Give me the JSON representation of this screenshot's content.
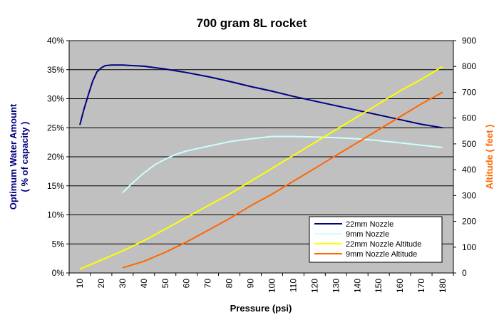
{
  "chart_data": {
    "type": "line",
    "title": "700 gram 8L rocket",
    "xlabel": "Pressure (psi)",
    "ylabel_left_line1": "Optimum Water Amount",
    "ylabel_left_line2": "( % of capacity )",
    "ylabel_right": "Altitude ( feet )",
    "x_ticks": [
      "10",
      "20",
      "30",
      "40",
      "50",
      "60",
      "70",
      "80",
      "90",
      "100",
      "110",
      "120",
      "130",
      "140",
      "150",
      "160",
      "170",
      "180"
    ],
    "xlim": [
      5,
      185
    ],
    "y_left_ticks": [
      "0%",
      "5%",
      "10%",
      "15%",
      "20%",
      "25%",
      "30%",
      "35%",
      "40%"
    ],
    "y_left_range": [
      0,
      40
    ],
    "y_right_ticks": [
      "0",
      "100",
      "200",
      "300",
      "400",
      "500",
      "600",
      "700",
      "800",
      "900"
    ],
    "y_right_range": [
      0,
      900
    ],
    "grid": "horizontal",
    "legend_position": "bottom-right",
    "plot_background": "#c0c0c0",
    "series": [
      {
        "name": "22mm Nozzle",
        "axis": "left",
        "color": "#000080",
        "x": [
          10,
          12,
          14,
          16,
          18,
          20,
          22,
          25,
          30,
          40,
          50,
          60,
          70,
          80,
          90,
          100,
          110,
          120,
          130,
          140,
          150,
          160,
          170,
          180
        ],
        "y": [
          25.5,
          28.3,
          30.7,
          33.0,
          34.6,
          35.3,
          35.7,
          35.8,
          35.8,
          35.6,
          35.1,
          34.5,
          33.8,
          33.0,
          32.1,
          31.3,
          30.4,
          29.6,
          28.8,
          28.0,
          27.2,
          26.4,
          25.6,
          25.0
        ]
      },
      {
        "name": "9mm Nozzle",
        "axis": "left",
        "color": "#ccffff",
        "x": [
          30,
          35,
          40,
          45,
          50,
          55,
          60,
          70,
          80,
          90,
          100,
          110,
          120,
          130,
          140,
          150,
          160,
          170,
          180
        ],
        "y": [
          13.8,
          15.6,
          17.2,
          18.6,
          19.6,
          20.4,
          21.0,
          21.8,
          22.6,
          23.1,
          23.5,
          23.5,
          23.4,
          23.3,
          23.1,
          22.8,
          22.4,
          22.0,
          21.6
        ]
      },
      {
        "name": "22mm Nozzle Altitude",
        "axis": "right",
        "color": "#ffff00",
        "x": [
          10,
          20,
          30,
          40,
          50,
          60,
          70,
          80,
          90,
          100,
          110,
          120,
          130,
          140,
          150,
          160,
          170,
          180
        ],
        "y": [
          15,
          50,
          85,
          125,
          170,
          215,
          260,
          305,
          355,
          405,
          455,
          505,
          555,
          605,
          655,
          705,
          750,
          800
        ]
      },
      {
        "name": "9mm Nozzle Altitude",
        "axis": "right",
        "color": "#ff6600",
        "x": [
          30,
          40,
          50,
          60,
          70,
          80,
          90,
          100,
          110,
          120,
          130,
          140,
          150,
          160,
          170,
          180
        ],
        "y": [
          20,
          45,
          80,
          120,
          165,
          210,
          260,
          305,
          355,
          405,
          455,
          505,
          555,
          605,
          655,
          700
        ]
      }
    ]
  },
  "colors": {
    "left_axis_title": "#000080",
    "right_axis_title": "#ff6600"
  }
}
